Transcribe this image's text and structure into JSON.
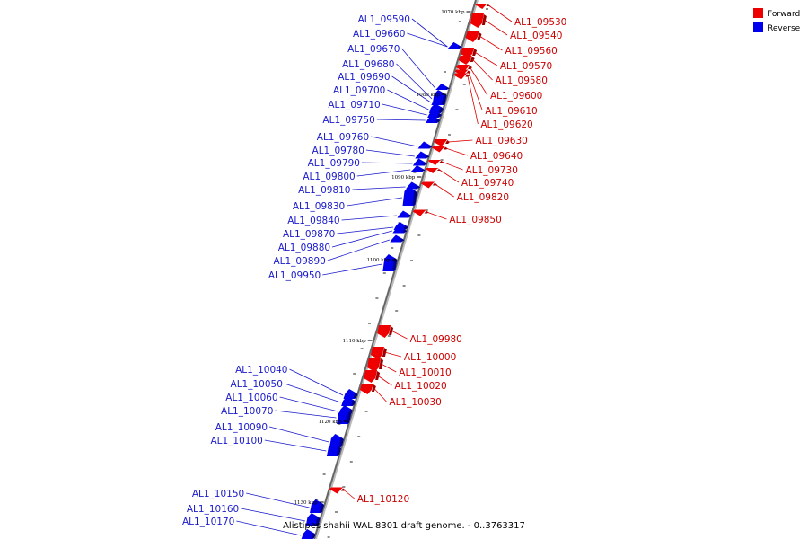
{
  "caption": "Alistipes shahii WAL 8301 draft genome. - 0..3763317",
  "legend": [
    {
      "label": "Forward",
      "color": "#ee0000"
    },
    {
      "label": "Reverse",
      "color": "#0000ee"
    }
  ],
  "scale_labels": [
    "1070 kbp",
    "1080 kbp",
    "1090 kbp",
    "1100 kbp",
    "1110 kbp",
    "1120 kbp",
    "1130 kbp"
  ],
  "forward_genes": [
    "AL1_09530",
    "AL1_09540",
    "AL1_09560",
    "AL1_09570",
    "AL1_09580",
    "AL1_09600",
    "AL1_09610",
    "AL1_09620",
    "AL1_09630",
    "AL1_09640",
    "AL1_09730",
    "AL1_09740",
    "AL1_09820",
    "AL1_09850",
    "AL1_09980",
    "AL1_10000",
    "AL1_10010",
    "AL1_10020",
    "AL1_10030",
    "AL1_10120"
  ],
  "reverse_genes": [
    "AL1_09590",
    "AL1_09660",
    "AL1_09670",
    "AL1_09680",
    "AL1_09690",
    "AL1_09700",
    "AL1_09710",
    "AL1_09750",
    "AL1_09760",
    "AL1_09780",
    "AL1_09790",
    "AL1_09800",
    "AL1_09810",
    "AL1_09830",
    "AL1_09840",
    "AL1_09870",
    "AL1_09880",
    "AL1_09890",
    "AL1_09950",
    "AL1_10040",
    "AL1_10050",
    "AL1_10060",
    "AL1_10070",
    "AL1_10090",
    "AL1_10100",
    "AL1_10150",
    "AL1_10160",
    "AL1_10170"
  ]
}
